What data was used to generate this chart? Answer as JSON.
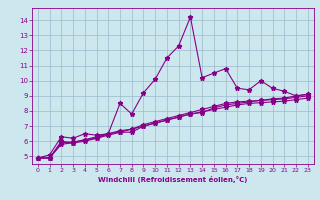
{
  "title": "",
  "xlabel": "Windchill (Refroidissement éolien,°C)",
  "bg_color": "#cce8ee",
  "line_color": "#880088",
  "grid_color": "#99bbcc",
  "xlim": [
    -0.5,
    23.5
  ],
  "ylim": [
    4.5,
    14.8
  ],
  "xticks": [
    0,
    1,
    2,
    3,
    4,
    5,
    6,
    7,
    8,
    9,
    10,
    11,
    12,
    13,
    14,
    15,
    16,
    17,
    18,
    19,
    20,
    21,
    22,
    23
  ],
  "yticks": [
    5,
    6,
    7,
    8,
    9,
    10,
    11,
    12,
    13,
    14
  ],
  "series": [
    [
      4.9,
      5.1,
      6.3,
      6.2,
      6.5,
      6.4,
      6.5,
      8.5,
      7.8,
      9.2,
      10.1,
      11.5,
      12.3,
      14.2,
      10.2,
      10.5,
      10.8,
      9.5,
      9.4,
      10.0,
      9.5,
      9.3,
      9.0,
      9.1
    ],
    [
      4.9,
      4.9,
      6.0,
      5.9,
      6.1,
      6.2,
      6.5,
      6.6,
      6.6,
      7.0,
      7.2,
      7.4,
      7.6,
      7.8,
      7.9,
      8.2,
      8.4,
      8.5,
      8.6,
      8.7,
      8.8,
      8.85,
      9.0,
      9.1
    ],
    [
      4.9,
      4.9,
      5.9,
      5.95,
      6.1,
      6.3,
      6.5,
      6.7,
      6.8,
      7.1,
      7.3,
      7.5,
      7.7,
      7.9,
      8.1,
      8.3,
      8.5,
      8.6,
      8.65,
      8.7,
      8.75,
      8.8,
      8.9,
      9.0
    ],
    [
      4.9,
      4.9,
      5.8,
      5.9,
      6.0,
      6.2,
      6.4,
      6.6,
      6.8,
      7.0,
      7.2,
      7.4,
      7.6,
      7.8,
      7.95,
      8.1,
      8.25,
      8.4,
      8.5,
      8.55,
      8.6,
      8.65,
      8.75,
      8.85
    ]
  ]
}
